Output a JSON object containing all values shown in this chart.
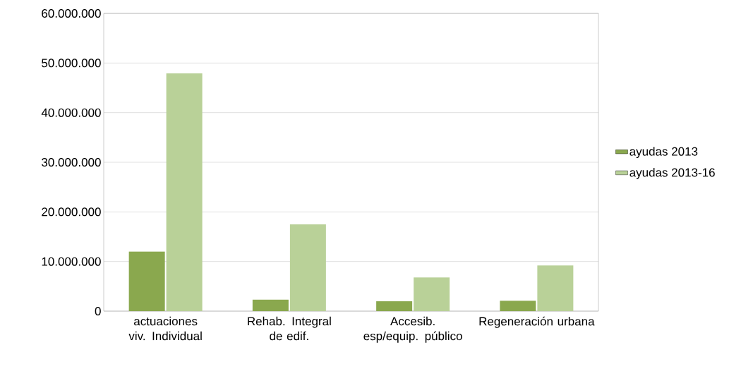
{
  "chart_data": {
    "type": "bar",
    "categories": [
      "actuaciones viv. Individual",
      "Rehab. Integral de edif.",
      "Accesib. esp/equip. público",
      "Regeneración urbana"
    ],
    "series": [
      {
        "name": "ayudas 2013",
        "color": "#8aa84e",
        "values": [
          12000000,
          2300000,
          2000000,
          2100000
        ]
      },
      {
        "name": "ayudas 2013-16",
        "color": "#b9d198",
        "values": [
          47900000,
          17500000,
          6800000,
          9200000
        ]
      }
    ],
    "ylim": [
      0,
      60000000
    ],
    "yticks": [
      {
        "value": 0,
        "label": "0"
      },
      {
        "value": 10000000,
        "label": "10.000.000"
      },
      {
        "value": 20000000,
        "label": "20.000.000"
      },
      {
        "value": 30000000,
        "label": "30.000.000"
      },
      {
        "value": 40000000,
        "label": "40.000.000"
      },
      {
        "value": 50000000,
        "label": "50.000.000"
      },
      {
        "value": 60000000,
        "label": "60.000.000"
      }
    ],
    "grid": "y",
    "legend": "right"
  }
}
